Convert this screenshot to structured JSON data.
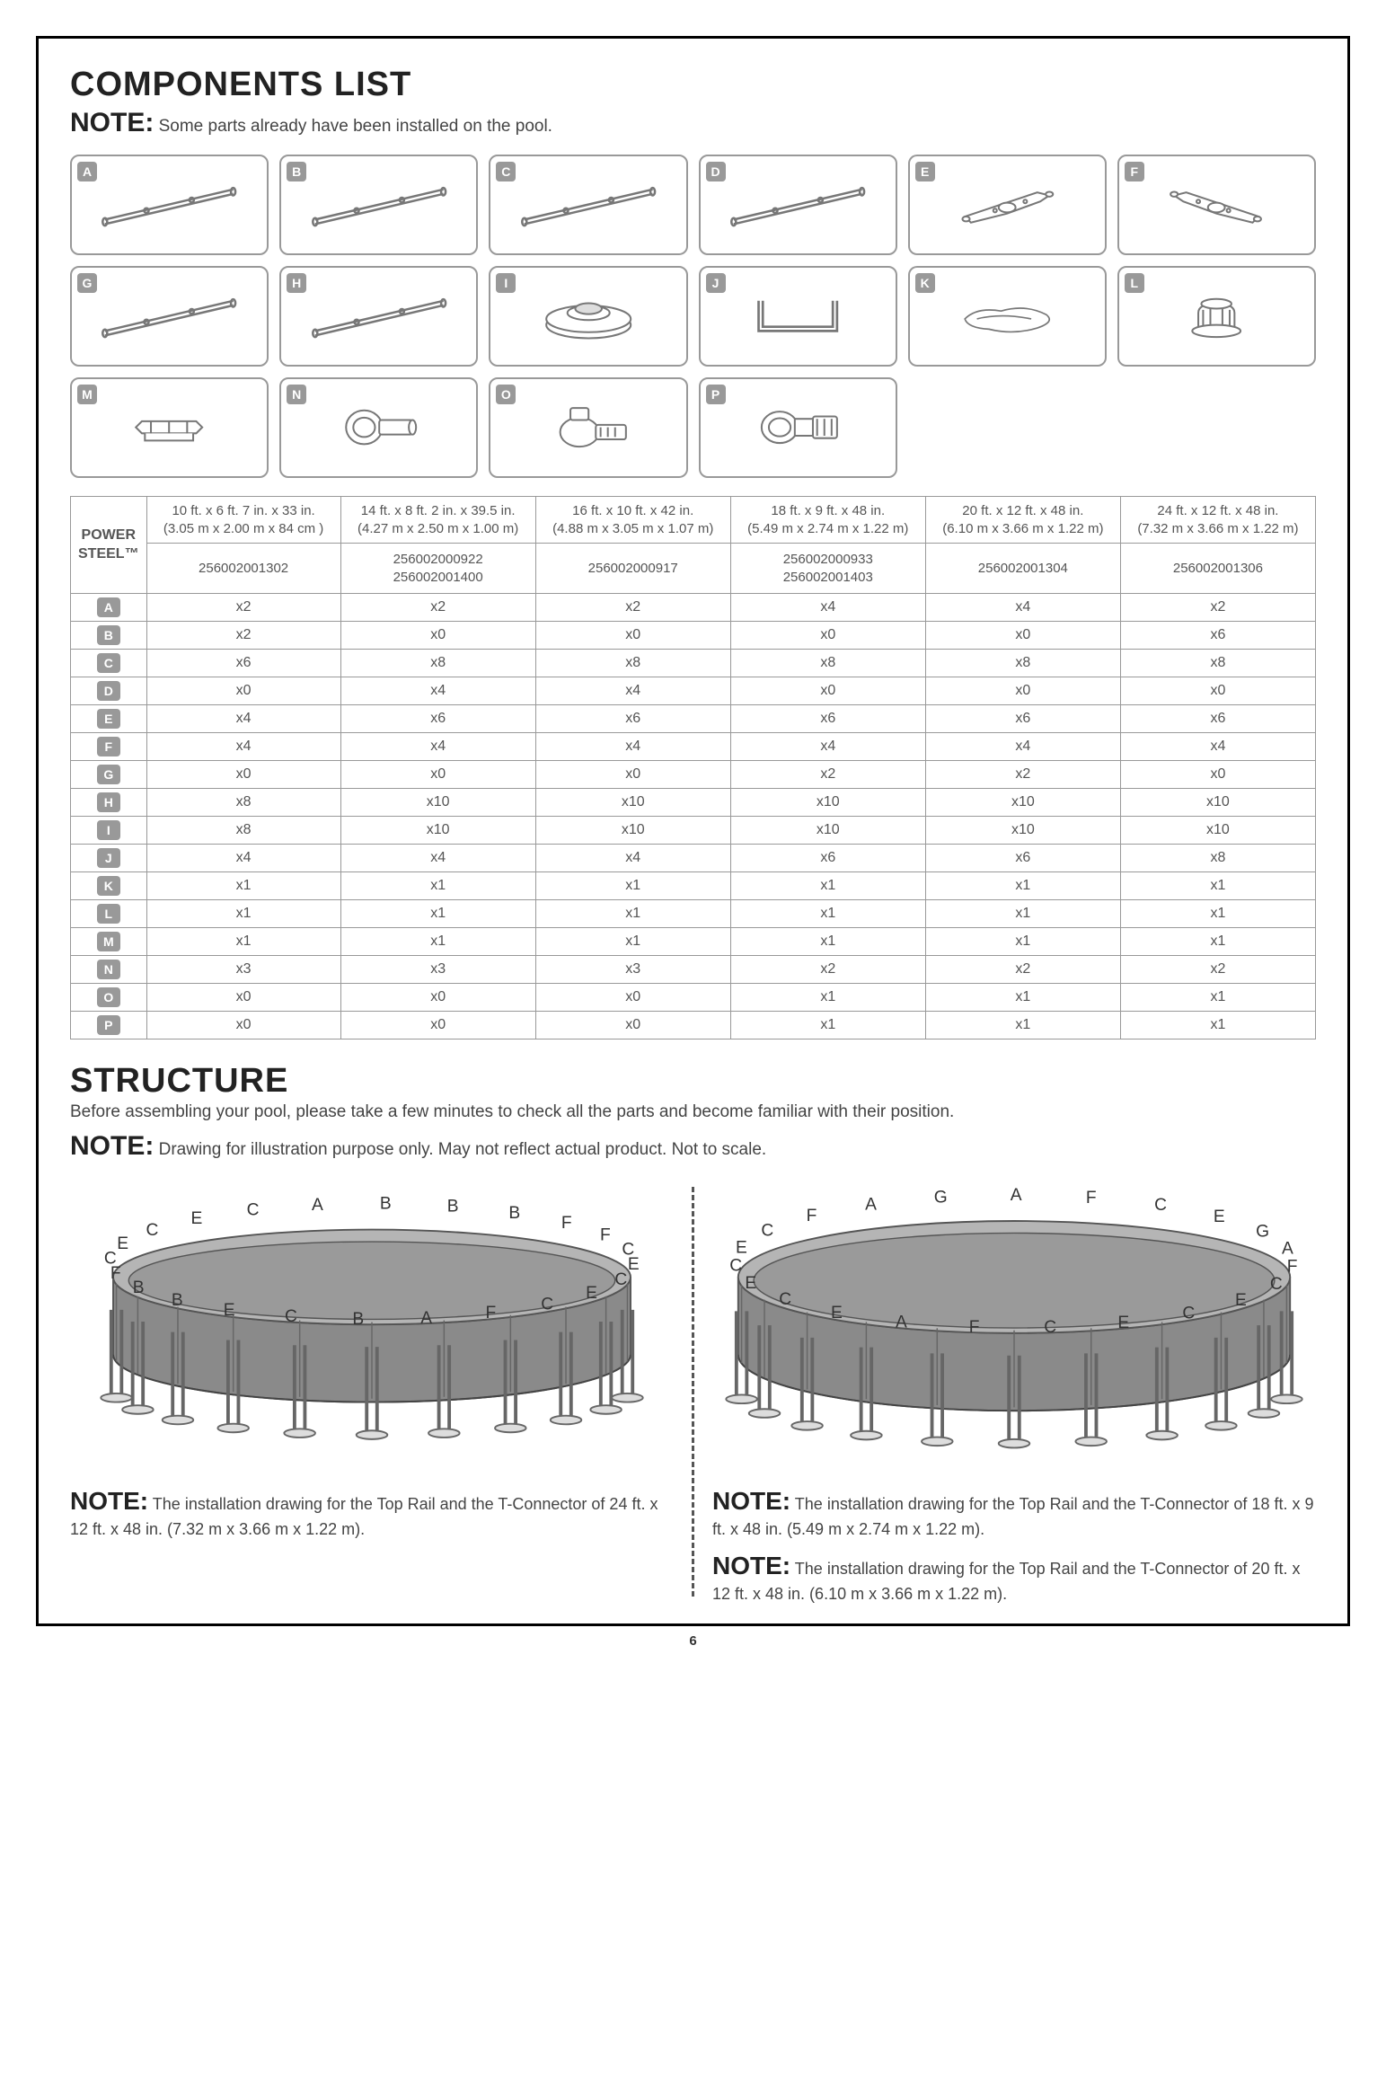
{
  "page_number": "6",
  "components_list": {
    "title": "COMPONENTS LIST",
    "note_label": "NOTE:",
    "note_text": "Some parts already have been installed on the pool.",
    "letters": [
      "A",
      "B",
      "C",
      "D",
      "E",
      "F",
      "G",
      "H",
      "I",
      "J",
      "K",
      "L",
      "M",
      "N",
      "O",
      "P"
    ]
  },
  "table": {
    "power_steel": "POWER STEEL™",
    "sizes": [
      {
        "imp": "10 ft. x 6 ft. 7 in. x 33 in.",
        "met": "(3.05 m x 2.00 m x 84 cm )"
      },
      {
        "imp": "14 ft. x 8 ft. 2 in. x 39.5 in.",
        "met": "(4.27 m x 2.50 m x 1.00 m)"
      },
      {
        "imp": "16 ft. x 10 ft. x 42 in.",
        "met": "(4.88 m x 3.05 m x 1.07 m)"
      },
      {
        "imp": "18 ft. x 9 ft. x 48 in.",
        "met": "(5.49 m x 2.74 m x 1.22 m)"
      },
      {
        "imp": "20 ft. x 12 ft. x 48 in.",
        "met": "(6.10 m x 3.66 m x 1.22 m)"
      },
      {
        "imp": "24 ft. x 12 ft. x 48 in.",
        "met": "(7.32 m x 3.66 m x 1.22 m)"
      }
    ],
    "models": [
      "256002001302",
      "256002000922\n256002001400",
      "256002000917",
      "256002000933\n256002001403",
      "256002001304",
      "256002001306"
    ],
    "rows": [
      {
        "letter": "A",
        "qty": [
          "x2",
          "x2",
          "x2",
          "x4",
          "x4",
          "x2"
        ]
      },
      {
        "letter": "B",
        "qty": [
          "x2",
          "x0",
          "x0",
          "x0",
          "x0",
          "x6"
        ]
      },
      {
        "letter": "C",
        "qty": [
          "x6",
          "x8",
          "x8",
          "x8",
          "x8",
          "x8"
        ]
      },
      {
        "letter": "D",
        "qty": [
          "x0",
          "x4",
          "x4",
          "x0",
          "x0",
          "x0"
        ]
      },
      {
        "letter": "E",
        "qty": [
          "x4",
          "x6",
          "x6",
          "x6",
          "x6",
          "x6"
        ]
      },
      {
        "letter": "F",
        "qty": [
          "x4",
          "x4",
          "x4",
          "x4",
          "x4",
          "x4"
        ]
      },
      {
        "letter": "G",
        "qty": [
          "x0",
          "x0",
          "x0",
          "x2",
          "x2",
          "x0"
        ]
      },
      {
        "letter": "H",
        "qty": [
          "x8",
          "x10",
          "x10",
          "x10",
          "x10",
          "x10"
        ]
      },
      {
        "letter": "I",
        "qty": [
          "x8",
          "x10",
          "x10",
          "x10",
          "x10",
          "x10"
        ]
      },
      {
        "letter": "J",
        "qty": [
          "x4",
          "x4",
          "x4",
          "x6",
          "x6",
          "x8"
        ]
      },
      {
        "letter": "K",
        "qty": [
          "x1",
          "x1",
          "x1",
          "x1",
          "x1",
          "x1"
        ]
      },
      {
        "letter": "L",
        "qty": [
          "x1",
          "x1",
          "x1",
          "x1",
          "x1",
          "x1"
        ]
      },
      {
        "letter": "M",
        "qty": [
          "x1",
          "x1",
          "x1",
          "x1",
          "x1",
          "x1"
        ]
      },
      {
        "letter": "N",
        "qty": [
          "x3",
          "x3",
          "x3",
          "x2",
          "x2",
          "x2"
        ]
      },
      {
        "letter": "O",
        "qty": [
          "x0",
          "x0",
          "x0",
          "x1",
          "x1",
          "x1"
        ]
      },
      {
        "letter": "P",
        "qty": [
          "x0",
          "x0",
          "x0",
          "x1",
          "x1",
          "x1"
        ]
      }
    ]
  },
  "structure": {
    "title": "STRUCTURE",
    "subtitle": "Before assembling your pool, please take a few minutes to check all the parts and become familiar with their position.",
    "note_label": "NOTE:",
    "note_text": "Drawing for illustration purpose only. May not reflect actual product. Not to scale.",
    "left_note": "The installation drawing for the Top Rail and the T-Connector of 24 ft. x 12 ft. x 48 in. (7.32 m x 3.66 m x 1.22 m).",
    "right_note1": "The installation drawing for the Top Rail and the T-Connector of  18 ft. x 9 ft. x 48 in. (5.49 m x 2.74 m x 1.22 m).",
    "right_note2": "The installation drawing for the Top Rail and the T-Connector of  20 ft. x 12 ft. x 48 in. (6.10 m x 3.66 m x 1.22 m).",
    "left_labels": [
      "F",
      "C",
      "E",
      "C",
      "E",
      "C",
      "F",
      "A",
      "B",
      "C",
      "E",
      "B",
      "B",
      "F",
      "C",
      "E",
      "C",
      "E",
      "C",
      "A",
      "B",
      "B",
      "B",
      "F"
    ],
    "right_labels": [
      "G",
      "A",
      "F",
      "C",
      "E",
      "C",
      "E",
      "C",
      "F",
      "A",
      "E",
      "C",
      "E",
      "C",
      "E",
      "C",
      "F",
      "A",
      "G",
      "A",
      "F",
      "C",
      "E"
    ]
  },
  "colors": {
    "border": "#999999",
    "text": "#444444",
    "letter_bg": "#999999",
    "pool_body": "#888888",
    "pool_body_light": "#aaaaaa",
    "pool_outline": "#555555"
  }
}
